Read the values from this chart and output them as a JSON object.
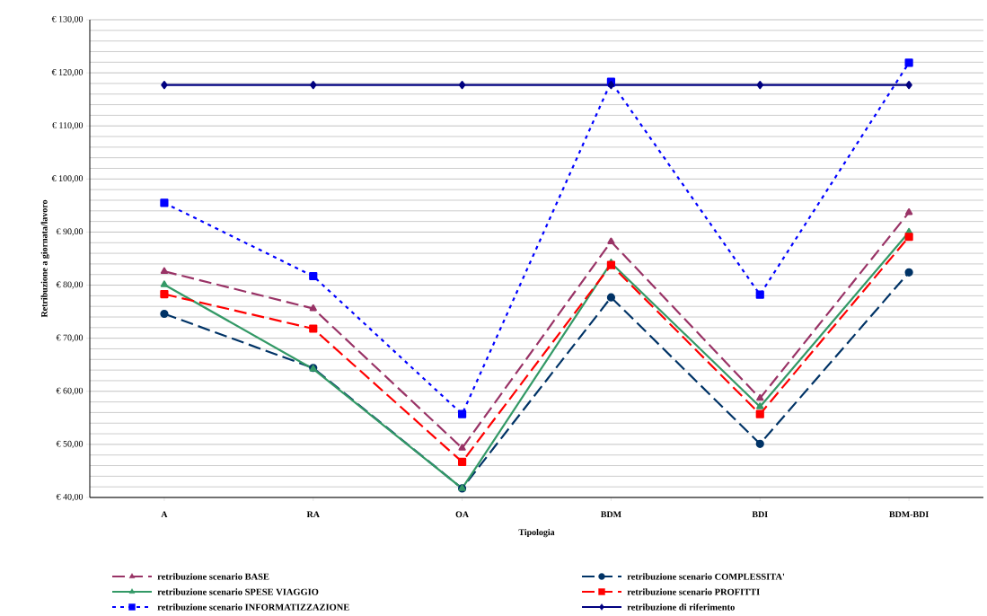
{
  "chart_data": {
    "type": "line",
    "xlabel": "Tipologia",
    "ylabel": "Retribuzione a giornata/lavoro",
    "categories": [
      "A",
      "RA",
      "OA",
      "BDM",
      "BDI",
      "BDM-BDI"
    ],
    "ylim": [
      40,
      130
    ],
    "yticks": [
      {
        "value": 40,
        "label": "€ 40,00"
      },
      {
        "value": 50,
        "label": "€ 50,00"
      },
      {
        "value": 60,
        "label": "€ 60,00"
      },
      {
        "value": 70,
        "label": "€ 70,00"
      },
      {
        "value": 80,
        "label": "€ 80,00"
      },
      {
        "value": 90,
        "label": "€ 90,00"
      },
      {
        "value": 100,
        "label": "€ 100,00"
      },
      {
        "value": 110,
        "label": "€ 110,00"
      },
      {
        "value": 120,
        "label": "€ 120,00"
      },
      {
        "value": 130,
        "label": "€ 130,00"
      }
    ],
    "grid": "y",
    "legend": "bottom",
    "series": [
      {
        "name": "retribuzione scenario BASE",
        "color": "#993366",
        "marker": "triangle",
        "line_style": "dashed",
        "values": [
          82.6,
          75.6,
          49.3,
          88.2,
          58.7,
          93.7
        ]
      },
      {
        "name": "retribuzione scenario COMPLESSITA'",
        "color": "#003366",
        "marker": "circle",
        "line_style": "dashed",
        "values": [
          74.6,
          64.4,
          41.7,
          77.7,
          50.1,
          82.4
        ]
      },
      {
        "name": "retribuzione scenario SPESE VIAGGIO",
        "color": "#339966",
        "marker": "triangle",
        "line_style": "solid",
        "values": [
          80.1,
          64.2,
          41.7,
          84.2,
          57.1,
          90.0
        ]
      },
      {
        "name": "retribuzione scenario PROFITTI",
        "color": "#ff0000",
        "marker": "square",
        "line_style": "dashed",
        "values": [
          78.3,
          71.8,
          46.7,
          83.8,
          55.7,
          89.1
        ]
      },
      {
        "name": "retribuzione scenario INFORMATIZZAZIONE",
        "color": "#0000ff",
        "marker": "square",
        "line_style": "dotted",
        "values": [
          95.5,
          81.7,
          55.7,
          118.3,
          78.2,
          121.9
        ]
      },
      {
        "name": "retribuzione di riferimento",
        "color": "#000080",
        "marker": "diamond",
        "line_style": "solid",
        "values": [
          117.7,
          117.7,
          117.7,
          117.7,
          117.7,
          117.7
        ]
      }
    ]
  }
}
